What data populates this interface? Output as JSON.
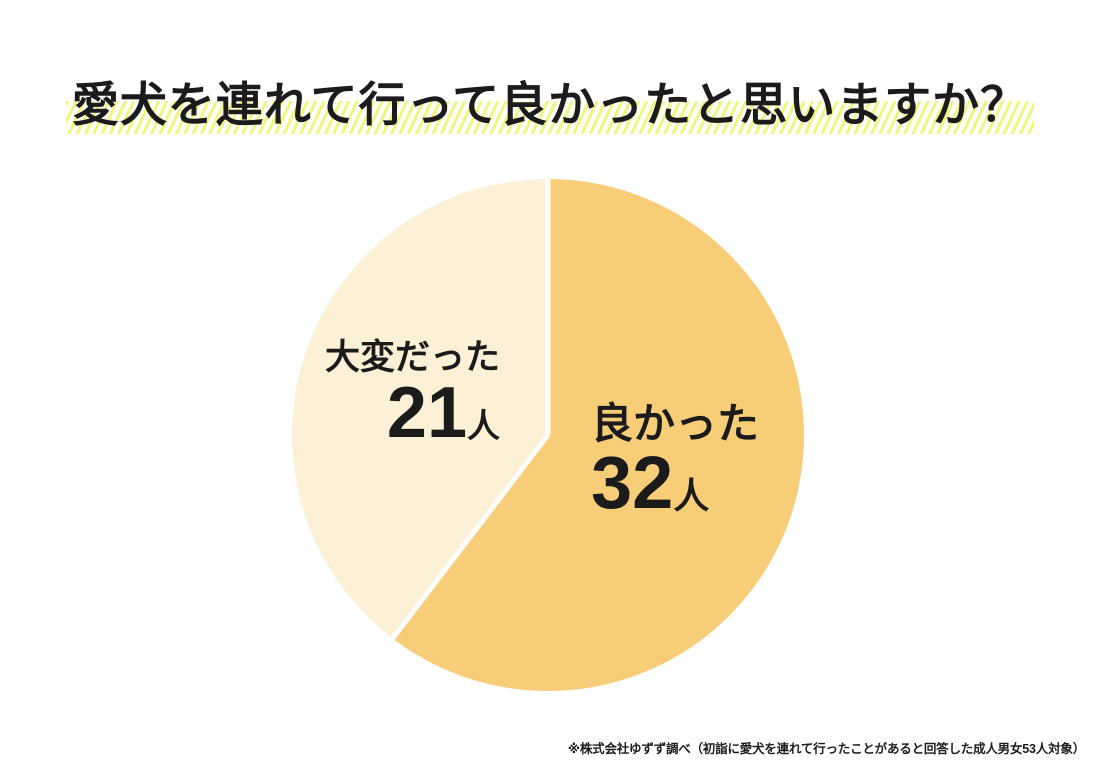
{
  "chart_data": {
    "type": "pie",
    "title": "愛犬を連れて行って良かったと思いますか？",
    "total": 53,
    "unit": "人",
    "direction": "clockwise",
    "start_angle_deg": 0,
    "legend_position": "inside",
    "slices": [
      {
        "label": "良かった",
        "value": 32,
        "unit": "人",
        "color": "#f8cd78"
      },
      {
        "label": "大変だった",
        "value": 21,
        "unit": "人",
        "color": "#fcf0d6"
      }
    ],
    "divider_color": "#ffffff",
    "source_note": "※株式会社ゆずず調べ（初詣に愛犬を連れて行ったことがあると回答した成人男女53人対象）"
  },
  "style": {
    "background": "#ffffff",
    "text_color": "#1b1b1b",
    "title_highlight_color": "#f0f67d"
  }
}
